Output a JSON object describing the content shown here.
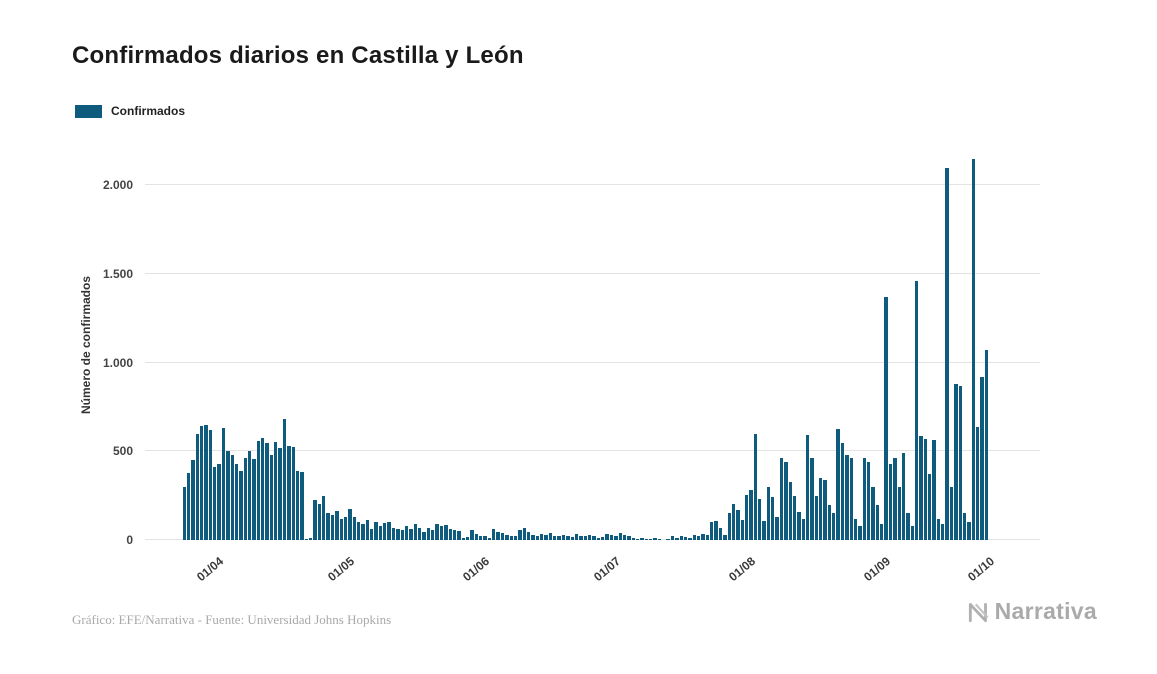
{
  "header": {
    "title": "Confirmados diarios en Castilla y León"
  },
  "legend": {
    "label": "Confirmados"
  },
  "colors": {
    "accent": "#0f5b7d",
    "grid": "#e3e3e3",
    "muted_text": "#a9a9a9"
  },
  "footer": {
    "credit": "Gráfico: EFE/Narrativa - Fuente: Universidad Johns Hopkins",
    "brand": "Narrativa"
  },
  "chart_data": {
    "type": "bar",
    "title": "Confirmados diarios en Castilla y León",
    "xlabel": "",
    "ylabel": "Número de confirmados",
    "series_name": "Confirmados",
    "ylim": [
      0,
      2200
    ],
    "grid": true,
    "legend_position": "top-left",
    "y_ticks": [
      {
        "label": "0",
        "value": 0
      },
      {
        "label": "500",
        "value": 500
      },
      {
        "label": "1.000",
        "value": 1000
      },
      {
        "label": "1.500",
        "value": 1500
      },
      {
        "label": "2.000",
        "value": 2000
      }
    ],
    "x_ticks": [
      "01/04",
      "01/05",
      "01/06",
      "01/07",
      "01/08",
      "01/09",
      "01/10"
    ],
    "dates": [
      "24/03",
      "25/03",
      "26/03",
      "27/03",
      "28/03",
      "29/03",
      "30/03",
      "31/03",
      "01/04",
      "02/04",
      "03/04",
      "04/04",
      "05/04",
      "06/04",
      "07/04",
      "08/04",
      "09/04",
      "10/04",
      "11/04",
      "12/04",
      "13/04",
      "14/04",
      "15/04",
      "16/04",
      "17/04",
      "18/04",
      "19/04",
      "20/04",
      "21/04",
      "22/04",
      "23/04",
      "24/04",
      "25/04",
      "26/04",
      "27/04",
      "28/04",
      "29/04",
      "30/04",
      "01/05",
      "02/05",
      "03/05",
      "04/05",
      "05/05",
      "06/05",
      "07/05",
      "08/05",
      "09/05",
      "10/05",
      "11/05",
      "12/05",
      "13/05",
      "14/05",
      "15/05",
      "16/05",
      "17/05",
      "18/05",
      "19/05",
      "20/05",
      "21/05",
      "22/05",
      "23/05",
      "24/05",
      "25/05",
      "26/05",
      "27/05",
      "28/05",
      "29/05",
      "30/05",
      "31/05",
      "01/06",
      "02/06",
      "03/06",
      "04/06",
      "05/06",
      "06/06",
      "07/06",
      "08/06",
      "09/06",
      "10/06",
      "11/06",
      "12/06",
      "13/06",
      "14/06",
      "15/06",
      "16/06",
      "17/06",
      "18/06",
      "19/06",
      "20/06",
      "21/06",
      "22/06",
      "23/06",
      "24/06",
      "25/06",
      "26/06",
      "27/06",
      "28/06",
      "29/06",
      "30/06",
      "01/07",
      "02/07",
      "03/07",
      "04/07",
      "05/07",
      "06/07",
      "07/07",
      "08/07",
      "09/07",
      "10/07",
      "11/07",
      "12/07",
      "13/07",
      "14/07",
      "15/07",
      "16/07",
      "17/07",
      "18/07",
      "19/07",
      "20/07",
      "21/07",
      "22/07",
      "23/07",
      "24/07",
      "25/07",
      "26/07",
      "27/07",
      "28/07",
      "29/07",
      "30/07",
      "31/07",
      "01/08",
      "02/08",
      "03/08",
      "04/08",
      "05/08",
      "06/08",
      "07/08",
      "08/08",
      "09/08",
      "10/08",
      "11/08",
      "12/08",
      "13/08",
      "14/08",
      "15/08",
      "16/08",
      "17/08",
      "18/08",
      "19/08",
      "20/08",
      "21/08",
      "22/08",
      "23/08",
      "24/08",
      "25/08",
      "26/08",
      "27/08",
      "28/08",
      "29/08",
      "30/08",
      "31/08",
      "01/09",
      "02/09",
      "03/09",
      "04/09",
      "05/09",
      "06/09",
      "07/09",
      "08/09",
      "09/09",
      "10/09",
      "11/09",
      "12/09",
      "13/09",
      "14/09",
      "15/09",
      "16/09",
      "17/09",
      "18/09",
      "19/09",
      "20/09",
      "21/09",
      "22/09",
      "23/09",
      "24/09"
    ],
    "values": [
      300,
      380,
      450,
      600,
      645,
      650,
      620,
      410,
      430,
      630,
      500,
      480,
      430,
      390,
      465,
      500,
      455,
      560,
      575,
      545,
      480,
      555,
      520,
      680,
      530,
      525,
      390,
      385,
      5,
      10,
      225,
      205,
      250,
      150,
      140,
      165,
      120,
      130,
      175,
      130,
      100,
      90,
      115,
      60,
      100,
      80,
      95,
      100,
      70,
      60,
      55,
      80,
      60,
      90,
      70,
      45,
      65,
      55,
      90,
      80,
      85,
      60,
      55,
      50,
      10,
      15,
      55,
      35,
      25,
      20,
      10,
      60,
      45,
      40,
      30,
      20,
      25,
      55,
      65,
      45,
      30,
      25,
      35,
      30,
      40,
      25,
      20,
      30,
      25,
      15,
      35,
      25,
      20,
      30,
      20,
      10,
      15,
      35,
      30,
      25,
      40,
      30,
      20,
      10,
      5,
      10,
      5,
      5,
      10,
      5,
      0,
      5,
      20,
      10,
      25,
      15,
      10,
      30,
      25,
      35,
      30,
      100,
      110,
      65,
      30,
      150,
      205,
      170,
      115,
      255,
      280,
      600,
      230,
      110,
      300,
      240,
      130,
      465,
      440,
      330,
      250,
      160,
      120,
      590,
      460,
      250,
      350,
      340,
      200,
      150,
      625,
      550,
      480,
      465,
      120,
      80,
      460,
      440,
      300,
      200,
      90,
      1370,
      430,
      460,
      300,
      490,
      150,
      80,
      1460,
      585,
      570,
      370,
      565,
      120,
      90,
      2100,
      300,
      880,
      870,
      150,
      100,
      2150,
      640,
      920,
      1070
    ]
  }
}
